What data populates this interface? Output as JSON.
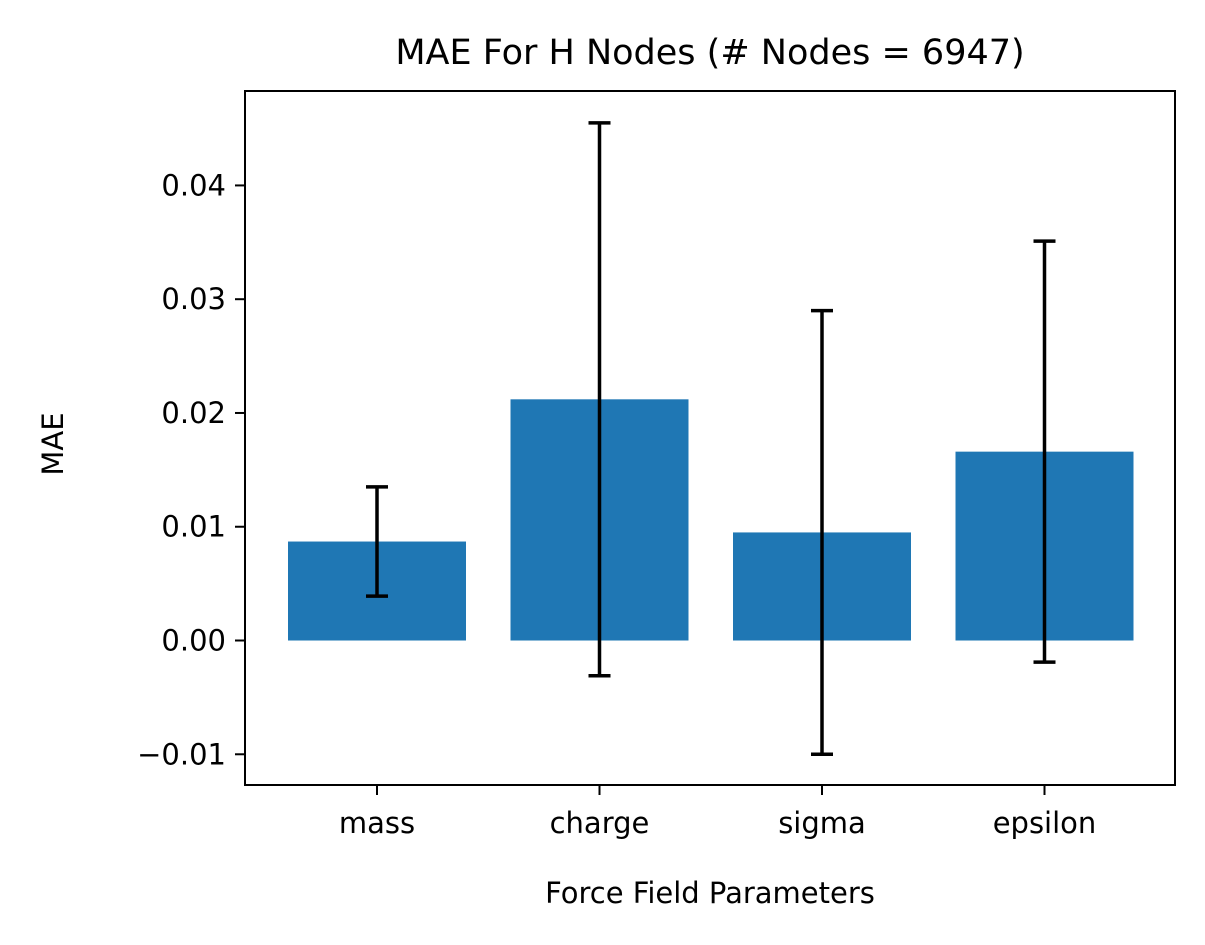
{
  "chart_data": {
    "type": "bar",
    "title": "MAE For H Nodes (# Nodes = 6947)",
    "xlabel": "Force Field Parameters",
    "ylabel": "MAE",
    "categories": [
      "mass",
      "charge",
      "sigma",
      "epsilon"
    ],
    "values": [
      0.0087,
      0.0212,
      0.0095,
      0.0166
    ],
    "errors": [
      0.0048,
      0.0243,
      0.0195,
      0.0185
    ],
    "ylim": [
      -0.0127,
      0.0483
    ],
    "yticks": [
      -0.01,
      0.0,
      0.01,
      0.02,
      0.03,
      0.04
    ],
    "ytick_labels": [
      "−0.01",
      "0.00",
      "0.01",
      "0.02",
      "0.03",
      "0.04"
    ],
    "bar_color": "#1f77b4",
    "errorbar_color": "#000000",
    "grid": false,
    "legend": false
  }
}
